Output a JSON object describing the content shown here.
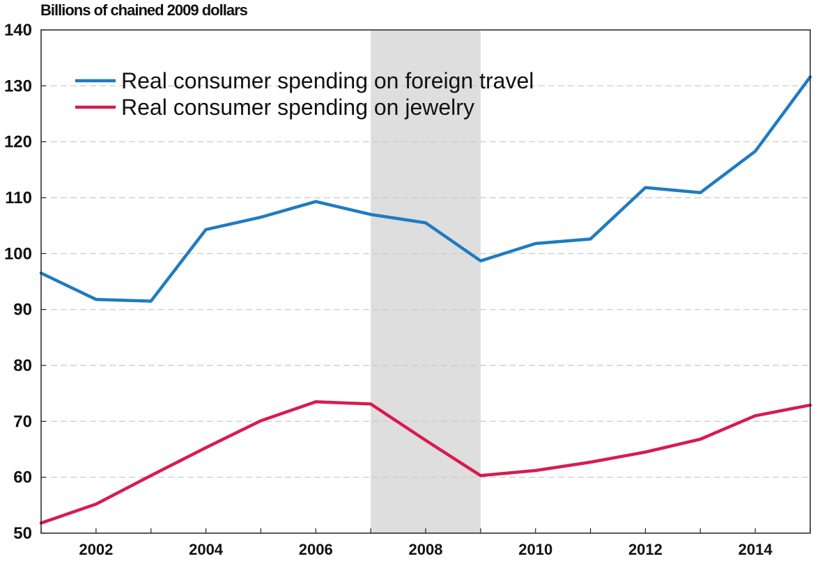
{
  "chart_data": {
    "type": "line",
    "ylabel": "Billions of chained 2009 dollars",
    "ylim": [
      50,
      140
    ],
    "yticks": [
      50,
      60,
      70,
      80,
      90,
      100,
      110,
      120,
      130,
      140
    ],
    "xlim": [
      2001,
      2015
    ],
    "xticks": [
      2002,
      2004,
      2006,
      2008,
      2010,
      2012,
      2014
    ],
    "recession": {
      "start": 2007.0,
      "end": 2009.0
    },
    "legend_position": "top-left",
    "grid": true,
    "series": [
      {
        "name": "Real consumer spending on foreign travel",
        "color": "#1f7bc1",
        "x": [
          2001,
          2002,
          2003,
          2004,
          2005,
          2006,
          2007,
          2008,
          2009,
          2010,
          2011,
          2012,
          2013,
          2014,
          2015
        ],
        "values": [
          96.5,
          91.8,
          91.5,
          104.3,
          106.5,
          109.3,
          107.0,
          105.5,
          98.7,
          101.8,
          102.6,
          111.8,
          110.9,
          118.3,
          131.6
        ]
      },
      {
        "name": "Real consumer spending on jewelry",
        "color": "#d81b4f",
        "x": [
          2001,
          2002,
          2003,
          2004,
          2005,
          2006,
          2007,
          2008,
          2009,
          2010,
          2011,
          2012,
          2013,
          2014,
          2015
        ],
        "values": [
          51.8,
          55.2,
          60.3,
          65.3,
          70.1,
          73.5,
          73.1,
          66.6,
          60.3,
          61.2,
          62.7,
          64.5,
          66.8,
          71.0,
          72.9
        ]
      }
    ]
  }
}
